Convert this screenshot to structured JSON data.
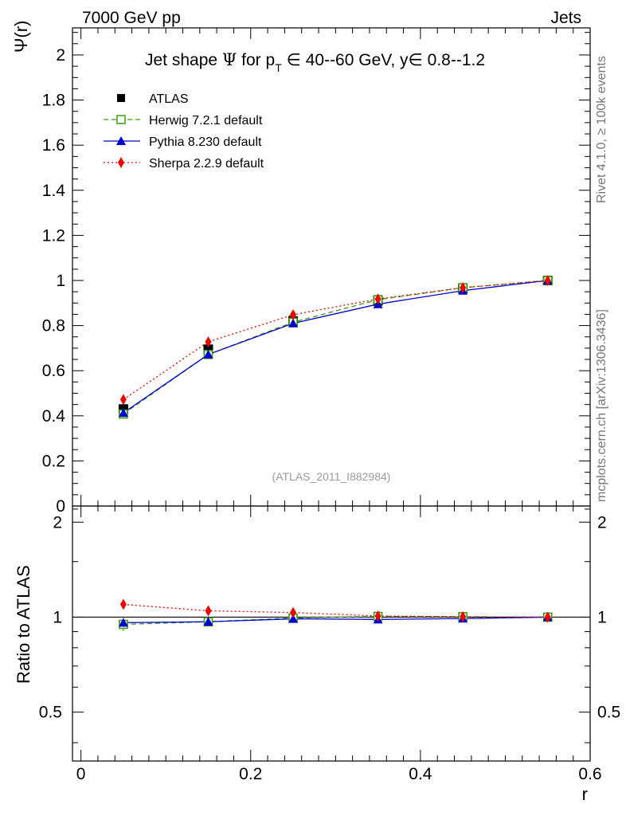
{
  "header": {
    "left": "7000 GeV pp",
    "right": "Jets"
  },
  "side": {
    "rivet": "Rivet 4.1.0, ≥ 100k events",
    "mcplots": "mcplots.cern.ch [arXiv:1306.3436]"
  },
  "chart_data": {
    "type": "line",
    "title": {
      "prefix": "Jet shape ",
      "psi": "Ψ",
      "mid": " for p",
      "sub": "T",
      "range": " ∈ 40--60 GeV, y∈ 0.8--1.2"
    },
    "watermark": "(ATLAS_2011_I882984)",
    "xlabel": "r",
    "ylabel": "Ψ(r)",
    "ratio_ylabel": "Ratio to ATLAS",
    "xlim": [
      -0.01,
      0.6
    ],
    "ylim": [
      0,
      2.12
    ],
    "ratio_ylim": [
      0.35,
      2.25
    ],
    "xticks": [
      0,
      0.2,
      0.4,
      0.6
    ],
    "xtick_labels": [
      "0",
      "0.2",
      "0.4",
      "0.6"
    ],
    "yticks": [
      0,
      0.2,
      0.4,
      0.6,
      0.8,
      1,
      1.2,
      1.4,
      1.6,
      1.8,
      2
    ],
    "ytick_labels": [
      "0",
      "0.2",
      "0.4",
      "0.6",
      "0.8",
      "1",
      "1.2",
      "1.4",
      "1.6",
      "1.8",
      "2"
    ],
    "ratio_ticks": [
      0.5,
      1,
      2
    ],
    "ratio_tick_labels": [
      "0.5",
      "1",
      "2"
    ],
    "x": [
      0.05,
      0.15,
      0.25,
      0.35,
      0.45,
      0.55
    ],
    "series": [
      {
        "name": "ATLAS",
        "values": [
          0.43,
          0.695,
          0.82,
          0.91,
          0.965,
          1.0
        ],
        "errors": [
          0.012,
          0.01,
          0.008,
          0.006,
          0.004,
          0.002
        ],
        "color": "#000000",
        "marker": "square"
      },
      {
        "name": "Herwig 7.2.1 default",
        "values": [
          0.408,
          0.672,
          0.815,
          0.915,
          0.968,
          1.0
        ],
        "ratio_errors": [
          0.045,
          0.005,
          0.005,
          0.003,
          0.002,
          0.001
        ],
        "color": "#3a9a10",
        "marker": "open-square",
        "dash": "6,4"
      },
      {
        "name": "Pythia 8.230 default",
        "values": [
          0.413,
          0.672,
          0.81,
          0.895,
          0.955,
          1.0
        ],
        "ratio_errors": [
          0.03,
          0.005,
          0.004,
          0.003,
          0.002,
          0.001
        ],
        "color": "#0000cc",
        "marker": "triangle"
      },
      {
        "name": "Sherpa 2.2.9 default",
        "values": [
          0.472,
          0.728,
          0.848,
          0.918,
          0.968,
          1.0
        ],
        "ratio_errors": [
          0.02,
          0.01,
          0.006,
          0.004,
          0.003,
          0.001
        ],
        "color": "#ee0000",
        "marker": "diamond",
        "dash": "2,3"
      }
    ]
  }
}
